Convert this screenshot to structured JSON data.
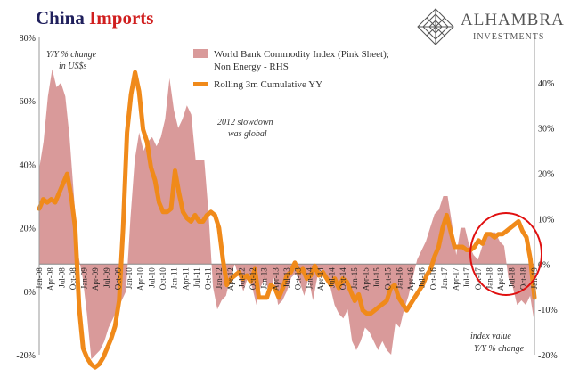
{
  "header": {
    "title_part1": "China",
    "title_part2": "Imports",
    "brand_name": "ALHAMBRA",
    "brand_sub": "INVESTMENTS"
  },
  "annotations": {
    "ylabel_left_1": "Y/Y % change",
    "ylabel_left_2": "in US$s",
    "note_1": "2012 slowdown",
    "note_2": "was global",
    "bottom_1": "index value",
    "bottom_2": "Y/Y % change"
  },
  "colors": {
    "area": "#d99a9a",
    "line": "#f08a1a",
    "circle": "#e01010",
    "title_dark": "#1f1f5c",
    "title_red": "#d01e1e"
  },
  "chart_data": {
    "type": "line",
    "title": "China Imports",
    "y_left": {
      "range": [
        -20,
        80
      ],
      "ticks": [
        "-20%",
        "0%",
        "20%",
        "40%",
        "60%",
        "80%"
      ]
    },
    "y_right": {
      "range": [
        -20,
        50
      ],
      "ticks": [
        "-20%",
        "-10%",
        "0%",
        "10%",
        "20%",
        "30%",
        "40%"
      ]
    },
    "x_tick_labels": [
      "Jan-08",
      "Apr-08",
      "Jul-08",
      "Oct-08",
      "Jan-09",
      "Apr-09",
      "Jul-09",
      "Oct-09",
      "Jan-10",
      "Apr-10",
      "Jul-10",
      "Oct-10",
      "Jan-11",
      "Apr-11",
      "Jul-11",
      "Oct-11",
      "Jan-12",
      "Apr-12",
      "Jul-12",
      "Oct-12",
      "Jan-13",
      "Apr-13",
      "Jul-13",
      "Oct-13",
      "Jan-14",
      "Apr-14",
      "Jul-14",
      "Oct-14",
      "Jan-15",
      "Apr-15",
      "Jul-15",
      "Oct-15",
      "Jan-16",
      "Apr-16",
      "Jul-16",
      "Oct-16",
      "Jan-17",
      "Apr-17",
      "Jul-17",
      "Oct-17",
      "Jan-18",
      "Apr-18",
      "Jul-18",
      "Oct-18",
      "Jan-19"
    ],
    "series": [
      {
        "name": "World Bank Commodity Index (Pink Sheet); Non Energy - RHS",
        "axis": "right",
        "kind": "area",
        "values": [
          21,
          27,
          37,
          43,
          39,
          40,
          37,
          28,
          15,
          2,
          -3,
          -11,
          -21,
          -20,
          -19,
          -17,
          -14,
          -12,
          -10,
          -8,
          -6,
          10,
          23,
          29,
          25,
          27,
          28,
          26,
          28,
          32,
          41,
          34,
          30,
          32,
          35,
          33,
          23,
          23,
          23,
          11,
          -5,
          -10,
          -8,
          -7,
          -3,
          0,
          -3,
          -6,
          -3,
          -5,
          -9,
          -5,
          -3,
          -7,
          -3,
          -9,
          -8,
          -6,
          -3,
          -2,
          -4,
          -7,
          -3,
          -8,
          -3,
          -1,
          -2,
          -5,
          -9,
          -11,
          -12,
          -10,
          -17,
          -19,
          -17,
          -14,
          -15,
          -17,
          -19,
          -17,
          -19,
          -20,
          -13,
          -14,
          -10,
          -7,
          -3,
          1,
          3,
          5,
          8,
          11,
          12,
          15,
          15,
          9,
          2,
          8,
          8,
          4,
          2,
          1,
          4,
          6,
          7,
          7,
          5,
          4,
          -3,
          -5,
          -9,
          -8,
          -9,
          -7,
          -13
        ],
        "values_note": "monthly, Jan-08 to Jan-19, % Y/Y"
      },
      {
        "name": "Rolling 3m Cumulative YY",
        "axis": "left",
        "kind": "line",
        "values": [
          26,
          29,
          28,
          29,
          28,
          31,
          34,
          37,
          30,
          20,
          -5,
          -18,
          -21,
          -23,
          -24,
          -23,
          -21,
          -18,
          -15,
          -11,
          -3,
          20,
          50,
          62,
          69,
          63,
          51,
          47,
          39,
          35,
          28,
          25,
          25,
          26,
          38,
          31,
          25,
          23,
          22,
          24,
          22,
          22,
          24,
          25,
          24,
          20,
          10,
          2,
          4,
          5,
          6,
          4,
          5,
          3,
          7,
          -2,
          -2,
          -2,
          2,
          1,
          -2,
          1,
          5,
          6,
          9,
          6,
          7,
          4,
          5,
          8,
          5,
          6,
          4,
          2,
          4,
          1,
          4,
          3,
          0,
          -3,
          -1,
          -6,
          -7,
          -7,
          -6,
          -5,
          -4,
          -3,
          1,
          2,
          -2,
          -4,
          -6,
          -4,
          -2,
          0,
          2,
          5,
          7,
          11,
          14,
          20,
          24,
          19,
          14,
          14,
          14,
          13,
          13,
          14,
          16,
          15,
          18,
          18,
          17,
          18,
          18,
          19,
          20,
          21,
          22,
          19,
          17,
          10,
          -2
        ]
      }
    ]
  }
}
